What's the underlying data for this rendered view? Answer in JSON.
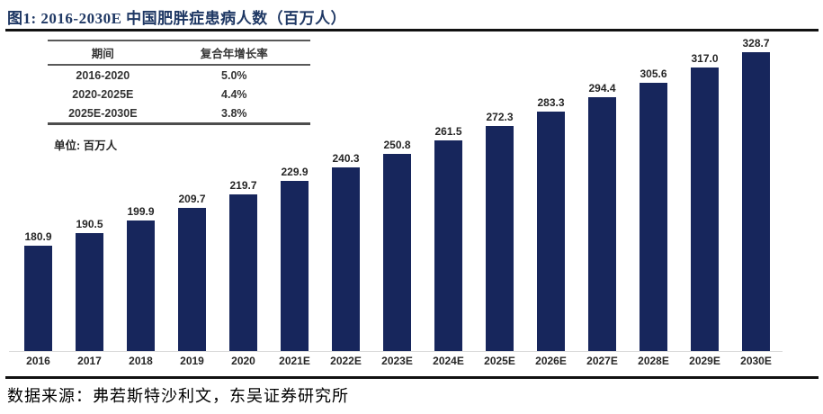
{
  "figure": {
    "title": "图1:  2016-2030E 中国肥胖症患病人数（百万人）",
    "unit_label": "单位: 百万人",
    "source": "数据来源：弗若斯特沙利文，东吴证券研究所"
  },
  "cagr_table": {
    "headers": [
      "期间",
      "复合年增长率"
    ],
    "rows": [
      [
        "2016-2020",
        "5.0%"
      ],
      [
        "2020-2025E",
        "4.4%"
      ],
      [
        "2025E-2030E",
        "3.8%"
      ]
    ]
  },
  "chart_data": {
    "type": "bar",
    "title": "2016-2030E 中国肥胖症患病人数（百万人）",
    "xlabel": "",
    "ylabel": "百万人",
    "categories": [
      "2016",
      "2017",
      "2018",
      "2019",
      "2020",
      "2021E",
      "2022E",
      "2023E",
      "2024E",
      "2025E",
      "2026E",
      "2027E",
      "2028E",
      "2029E",
      "2030E"
    ],
    "values": [
      180.9,
      190.5,
      199.9,
      209.7,
      219.7,
      229.9,
      240.3,
      250.8,
      261.5,
      272.3,
      283.3,
      294.4,
      305.6,
      317.0,
      328.7
    ],
    "value_labels": [
      "180.9",
      "190.5",
      "199.9",
      "209.7",
      "219.7",
      "229.9",
      "240.3",
      "250.8",
      "261.5",
      "272.3",
      "283.3",
      "294.4",
      "305.6",
      "317.0",
      "328.7"
    ],
    "ylim": [
      100,
      350
    ],
    "grid": false,
    "legend_position": "none",
    "bar_color": "#17265c"
  },
  "colors": {
    "title_navy": "#1f3864",
    "bar_navy": "#17265c",
    "rule_black": "#111111",
    "baseline_gray": "#d9d9d9",
    "label_dark": "#262626"
  }
}
